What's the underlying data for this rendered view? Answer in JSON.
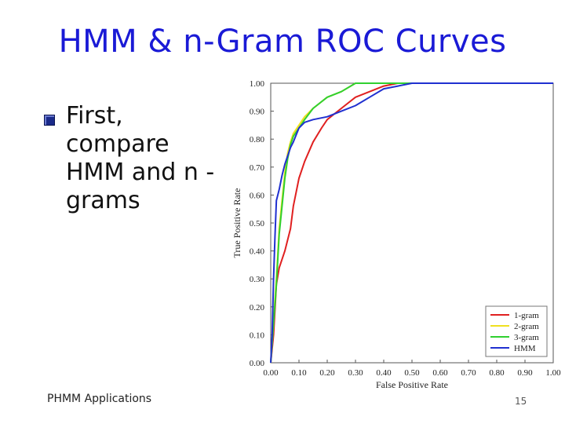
{
  "slide": {
    "title": "HMM & n-Gram ROC Curves",
    "bullet": "First, compare HMM and n -grams",
    "footer": "PHMM Applications",
    "page": "15"
  },
  "chart_data": {
    "type": "line",
    "title": "",
    "xlabel": "False Positive Rate",
    "ylabel": "True Positive Rate",
    "xlim": [
      0,
      1
    ],
    "ylim": [
      0,
      1
    ],
    "x_ticks": [
      "0.00",
      "0.10",
      "0.20",
      "0.30",
      "0.40",
      "0.50",
      "0.60",
      "0.70",
      "0.80",
      "0.90",
      "1.00"
    ],
    "y_ticks": [
      "0.00",
      "0.10",
      "0.20",
      "0.30",
      "0.40",
      "0.50",
      "0.60",
      "0.70",
      "0.80",
      "0.90",
      "1.00"
    ],
    "grid": false,
    "legend": "bottom-right",
    "series": [
      {
        "name": "1-gram",
        "color": "#e02020",
        "x": [
          0,
          0.01,
          0.02,
          0.03,
          0.04,
          0.05,
          0.06,
          0.07,
          0.08,
          0.1,
          0.12,
          0.15,
          0.18,
          0.2,
          0.25,
          0.3,
          0.35,
          0.4,
          0.45,
          0.5,
          0.6,
          0.8,
          1.0
        ],
        "y": [
          0,
          0.1,
          0.28,
          0.34,
          0.37,
          0.4,
          0.44,
          0.48,
          0.56,
          0.66,
          0.72,
          0.79,
          0.84,
          0.87,
          0.91,
          0.95,
          0.97,
          0.99,
          1.0,
          1.0,
          1.0,
          1.0,
          1.0
        ]
      },
      {
        "name": "2-gram",
        "color": "#f0e020",
        "x": [
          0,
          0.01,
          0.02,
          0.03,
          0.04,
          0.05,
          0.06,
          0.07,
          0.08,
          0.1,
          0.12,
          0.15,
          0.2,
          0.25,
          0.3,
          0.35,
          0.4,
          0.5,
          0.6,
          0.8,
          1.0
        ],
        "y": [
          0,
          0.15,
          0.3,
          0.48,
          0.58,
          0.68,
          0.75,
          0.79,
          0.82,
          0.85,
          0.88,
          0.91,
          0.95,
          0.97,
          1.0,
          1.0,
          1.0,
          1.0,
          1.0,
          1.0,
          1.0
        ]
      },
      {
        "name": "3-gram",
        "color": "#30d030",
        "x": [
          0,
          0.01,
          0.02,
          0.03,
          0.04,
          0.05,
          0.06,
          0.07,
          0.08,
          0.1,
          0.12,
          0.15,
          0.2,
          0.25,
          0.3,
          0.35,
          0.4,
          0.5,
          0.6,
          0.8,
          1.0
        ],
        "y": [
          0,
          0.14,
          0.28,
          0.46,
          0.56,
          0.66,
          0.73,
          0.78,
          0.81,
          0.84,
          0.87,
          0.91,
          0.95,
          0.97,
          1.0,
          1.0,
          1.0,
          1.0,
          1.0,
          1.0,
          1.0
        ]
      },
      {
        "name": "HMM",
        "color": "#2030d0",
        "x": [
          0,
          0.005,
          0.01,
          0.015,
          0.02,
          0.03,
          0.04,
          0.05,
          0.06,
          0.07,
          0.08,
          0.1,
          0.12,
          0.15,
          0.2,
          0.25,
          0.3,
          0.35,
          0.4,
          0.45,
          0.5,
          0.6,
          0.8,
          1.0
        ],
        "y": [
          0,
          0.1,
          0.3,
          0.45,
          0.58,
          0.62,
          0.67,
          0.71,
          0.74,
          0.77,
          0.79,
          0.84,
          0.86,
          0.87,
          0.88,
          0.9,
          0.92,
          0.95,
          0.98,
          0.99,
          1.0,
          1.0,
          1.0,
          1.0
        ]
      }
    ]
  }
}
